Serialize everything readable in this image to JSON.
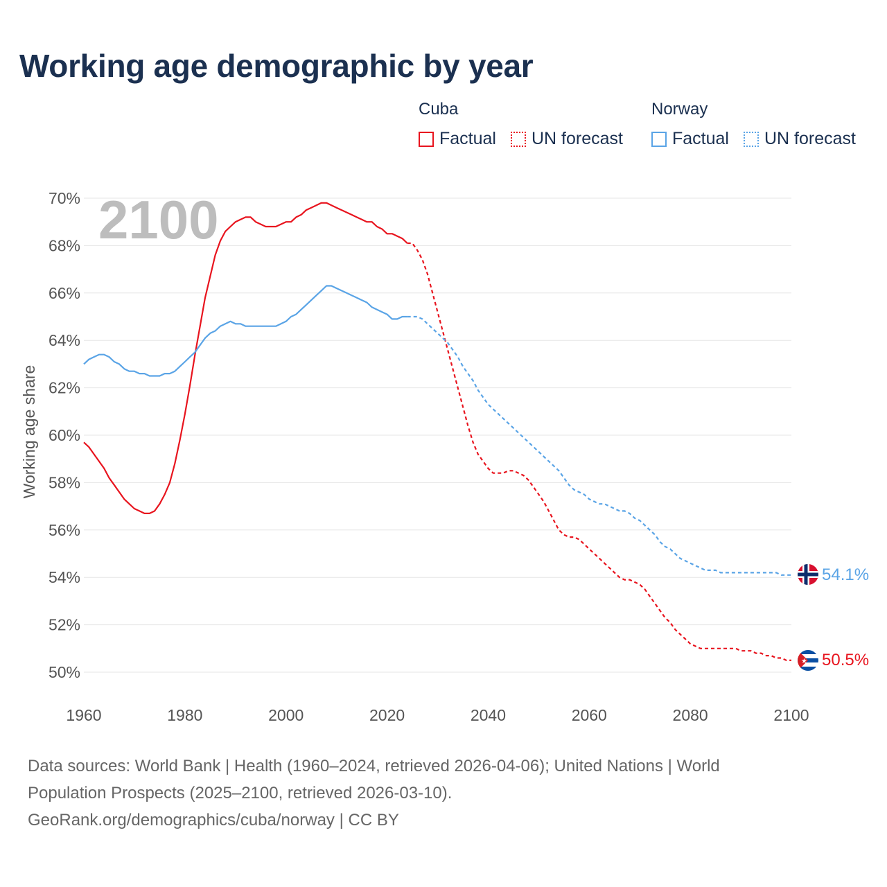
{
  "title": "Working age demographic by year",
  "legend": {
    "groups": [
      {
        "name": "Cuba",
        "color": "#e8141e",
        "factual_label": "Factual",
        "forecast_label": "UN forecast"
      },
      {
        "name": "Norway",
        "color": "#5aa4e6",
        "factual_label": "Factual",
        "forecast_label": "UN forecast"
      }
    ]
  },
  "chart_data": {
    "type": "line",
    "title": "Working age demographic by year",
    "xlabel": "",
    "ylabel": "Working age share",
    "xlim": [
      1960,
      2100
    ],
    "ylim": [
      49,
      71
    ],
    "x_ticks": [
      1960,
      1980,
      2000,
      2020,
      2040,
      2060,
      2080,
      2100
    ],
    "y_ticks": [
      50,
      52,
      54,
      56,
      58,
      60,
      62,
      64,
      66,
      68,
      70
    ],
    "y_tick_suffix": "%",
    "year_display": "2100",
    "factual_end_year": 2024,
    "series": [
      {
        "name": "Cuba",
        "color": "#e8141e",
        "end_label": "50.5%",
        "flag": "cuba-flag",
        "points": [
          [
            1960,
            59.7
          ],
          [
            1961,
            59.5
          ],
          [
            1962,
            59.2
          ],
          [
            1963,
            58.9
          ],
          [
            1964,
            58.6
          ],
          [
            1965,
            58.2
          ],
          [
            1966,
            57.9
          ],
          [
            1967,
            57.6
          ],
          [
            1968,
            57.3
          ],
          [
            1969,
            57.1
          ],
          [
            1970,
            56.9
          ],
          [
            1971,
            56.8
          ],
          [
            1972,
            56.7
          ],
          [
            1973,
            56.7
          ],
          [
            1974,
            56.8
          ],
          [
            1975,
            57.1
          ],
          [
            1976,
            57.5
          ],
          [
            1977,
            58.0
          ],
          [
            1978,
            58.8
          ],
          [
            1979,
            59.8
          ],
          [
            1980,
            60.9
          ],
          [
            1981,
            62.1
          ],
          [
            1982,
            63.4
          ],
          [
            1983,
            64.6
          ],
          [
            1984,
            65.8
          ],
          [
            1985,
            66.7
          ],
          [
            1986,
            67.6
          ],
          [
            1987,
            68.2
          ],
          [
            1988,
            68.6
          ],
          [
            1989,
            68.8
          ],
          [
            1990,
            69.0
          ],
          [
            1991,
            69.1
          ],
          [
            1992,
            69.2
          ],
          [
            1993,
            69.2
          ],
          [
            1994,
            69.0
          ],
          [
            1995,
            68.9
          ],
          [
            1996,
            68.8
          ],
          [
            1997,
            68.8
          ],
          [
            1998,
            68.8
          ],
          [
            1999,
            68.9
          ],
          [
            2000,
            69.0
          ],
          [
            2001,
            69.0
          ],
          [
            2002,
            69.2
          ],
          [
            2003,
            69.3
          ],
          [
            2004,
            69.5
          ],
          [
            2005,
            69.6
          ],
          [
            2006,
            69.7
          ],
          [
            2007,
            69.8
          ],
          [
            2008,
            69.8
          ],
          [
            2009,
            69.7
          ],
          [
            2010,
            69.6
          ],
          [
            2011,
            69.5
          ],
          [
            2012,
            69.4
          ],
          [
            2013,
            69.3
          ],
          [
            2014,
            69.2
          ],
          [
            2015,
            69.1
          ],
          [
            2016,
            69.0
          ],
          [
            2017,
            69.0
          ],
          [
            2018,
            68.8
          ],
          [
            2019,
            68.7
          ],
          [
            2020,
            68.5
          ],
          [
            2021,
            68.5
          ],
          [
            2022,
            68.4
          ],
          [
            2023,
            68.3
          ],
          [
            2024,
            68.1
          ],
          [
            2025,
            68.1
          ],
          [
            2026,
            67.8
          ],
          [
            2027,
            67.4
          ],
          [
            2028,
            66.8
          ],
          [
            2029,
            66.0
          ],
          [
            2030,
            65.2
          ],
          [
            2031,
            64.4
          ],
          [
            2032,
            63.6
          ],
          [
            2033,
            62.8
          ],
          [
            2034,
            62.0
          ],
          [
            2035,
            61.2
          ],
          [
            2036,
            60.4
          ],
          [
            2037,
            59.7
          ],
          [
            2038,
            59.2
          ],
          [
            2039,
            58.9
          ],
          [
            2040,
            58.6
          ],
          [
            2041,
            58.4
          ],
          [
            2042,
            58.4
          ],
          [
            2043,
            58.4
          ],
          [
            2044,
            58.5
          ],
          [
            2045,
            58.5
          ],
          [
            2046,
            58.4
          ],
          [
            2047,
            58.3
          ],
          [
            2048,
            58.1
          ],
          [
            2049,
            57.8
          ],
          [
            2050,
            57.5
          ],
          [
            2051,
            57.2
          ],
          [
            2052,
            56.8
          ],
          [
            2053,
            56.4
          ],
          [
            2054,
            56.0
          ],
          [
            2055,
            55.8
          ],
          [
            2056,
            55.7
          ],
          [
            2057,
            55.7
          ],
          [
            2058,
            55.6
          ],
          [
            2059,
            55.4
          ],
          [
            2060,
            55.2
          ],
          [
            2061,
            55.0
          ],
          [
            2062,
            54.8
          ],
          [
            2063,
            54.6
          ],
          [
            2064,
            54.4
          ],
          [
            2065,
            54.2
          ],
          [
            2066,
            54.0
          ],
          [
            2067,
            53.9
          ],
          [
            2068,
            53.9
          ],
          [
            2069,
            53.8
          ],
          [
            2070,
            53.7
          ],
          [
            2071,
            53.5
          ],
          [
            2072,
            53.2
          ],
          [
            2073,
            52.9
          ],
          [
            2074,
            52.6
          ],
          [
            2075,
            52.3
          ],
          [
            2076,
            52.1
          ],
          [
            2077,
            51.8
          ],
          [
            2078,
            51.6
          ],
          [
            2079,
            51.4
          ],
          [
            2080,
            51.2
          ],
          [
            2081,
            51.1
          ],
          [
            2082,
            51.0
          ],
          [
            2083,
            51.0
          ],
          [
            2084,
            51.0
          ],
          [
            2085,
            51.0
          ],
          [
            2086,
            51.0
          ],
          [
            2087,
            51.0
          ],
          [
            2088,
            51.0
          ],
          [
            2089,
            51.0
          ],
          [
            2090,
            50.9
          ],
          [
            2091,
            50.9
          ],
          [
            2092,
            50.9
          ],
          [
            2093,
            50.8
          ],
          [
            2094,
            50.8
          ],
          [
            2095,
            50.7
          ],
          [
            2096,
            50.7
          ],
          [
            2097,
            50.6
          ],
          [
            2098,
            50.6
          ],
          [
            2099,
            50.5
          ],
          [
            2100,
            50.5
          ]
        ]
      },
      {
        "name": "Norway",
        "color": "#5aa4e6",
        "end_label": "54.1%",
        "flag": "norway-flag",
        "points": [
          [
            1960,
            63.0
          ],
          [
            1961,
            63.2
          ],
          [
            1962,
            63.3
          ],
          [
            1963,
            63.4
          ],
          [
            1964,
            63.4
          ],
          [
            1965,
            63.3
          ],
          [
            1966,
            63.1
          ],
          [
            1967,
            63.0
          ],
          [
            1968,
            62.8
          ],
          [
            1969,
            62.7
          ],
          [
            1970,
            62.7
          ],
          [
            1971,
            62.6
          ],
          [
            1972,
            62.6
          ],
          [
            1973,
            62.5
          ],
          [
            1974,
            62.5
          ],
          [
            1975,
            62.5
          ],
          [
            1976,
            62.6
          ],
          [
            1977,
            62.6
          ],
          [
            1978,
            62.7
          ],
          [
            1979,
            62.9
          ],
          [
            1980,
            63.1
          ],
          [
            1981,
            63.3
          ],
          [
            1982,
            63.5
          ],
          [
            1983,
            63.8
          ],
          [
            1984,
            64.1
          ],
          [
            1985,
            64.3
          ],
          [
            1986,
            64.4
          ],
          [
            1987,
            64.6
          ],
          [
            1988,
            64.7
          ],
          [
            1989,
            64.8
          ],
          [
            1990,
            64.7
          ],
          [
            1991,
            64.7
          ],
          [
            1992,
            64.6
          ],
          [
            1993,
            64.6
          ],
          [
            1994,
            64.6
          ],
          [
            1995,
            64.6
          ],
          [
            1996,
            64.6
          ],
          [
            1997,
            64.6
          ],
          [
            1998,
            64.6
          ],
          [
            1999,
            64.7
          ],
          [
            2000,
            64.8
          ],
          [
            2001,
            65.0
          ],
          [
            2002,
            65.1
          ],
          [
            2003,
            65.3
          ],
          [
            2004,
            65.5
          ],
          [
            2005,
            65.7
          ],
          [
            2006,
            65.9
          ],
          [
            2007,
            66.1
          ],
          [
            2008,
            66.3
          ],
          [
            2009,
            66.3
          ],
          [
            2010,
            66.2
          ],
          [
            2011,
            66.1
          ],
          [
            2012,
            66.0
          ],
          [
            2013,
            65.9
          ],
          [
            2014,
            65.8
          ],
          [
            2015,
            65.7
          ],
          [
            2016,
            65.6
          ],
          [
            2017,
            65.4
          ],
          [
            2018,
            65.3
          ],
          [
            2019,
            65.2
          ],
          [
            2020,
            65.1
          ],
          [
            2021,
            64.9
          ],
          [
            2022,
            64.9
          ],
          [
            2023,
            65.0
          ],
          [
            2024,
            65.0
          ],
          [
            2025,
            65.0
          ],
          [
            2026,
            65.0
          ],
          [
            2027,
            64.9
          ],
          [
            2028,
            64.7
          ],
          [
            2029,
            64.5
          ],
          [
            2030,
            64.3
          ],
          [
            2031,
            64.1
          ],
          [
            2032,
            63.9
          ],
          [
            2033,
            63.6
          ],
          [
            2034,
            63.3
          ],
          [
            2035,
            62.9
          ],
          [
            2036,
            62.6
          ],
          [
            2037,
            62.3
          ],
          [
            2038,
            61.9
          ],
          [
            2039,
            61.6
          ],
          [
            2040,
            61.3
          ],
          [
            2041,
            61.1
          ],
          [
            2042,
            60.9
          ],
          [
            2043,
            60.7
          ],
          [
            2044,
            60.5
          ],
          [
            2045,
            60.3
          ],
          [
            2046,
            60.1
          ],
          [
            2047,
            59.9
          ],
          [
            2048,
            59.7
          ],
          [
            2049,
            59.5
          ],
          [
            2050,
            59.3
          ],
          [
            2051,
            59.1
          ],
          [
            2052,
            58.9
          ],
          [
            2053,
            58.7
          ],
          [
            2054,
            58.5
          ],
          [
            2055,
            58.2
          ],
          [
            2056,
            57.9
          ],
          [
            2057,
            57.7
          ],
          [
            2058,
            57.6
          ],
          [
            2059,
            57.5
          ],
          [
            2060,
            57.3
          ],
          [
            2061,
            57.2
          ],
          [
            2062,
            57.1
          ],
          [
            2063,
            57.1
          ],
          [
            2064,
            57.0
          ],
          [
            2065,
            56.9
          ],
          [
            2066,
            56.8
          ],
          [
            2067,
            56.8
          ],
          [
            2068,
            56.7
          ],
          [
            2069,
            56.5
          ],
          [
            2070,
            56.4
          ],
          [
            2071,
            56.2
          ],
          [
            2072,
            56.0
          ],
          [
            2073,
            55.8
          ],
          [
            2074,
            55.5
          ],
          [
            2075,
            55.3
          ],
          [
            2076,
            55.2
          ],
          [
            2077,
            55.0
          ],
          [
            2078,
            54.8
          ],
          [
            2079,
            54.7
          ],
          [
            2080,
            54.6
          ],
          [
            2081,
            54.5
          ],
          [
            2082,
            54.4
          ],
          [
            2083,
            54.3
          ],
          [
            2084,
            54.3
          ],
          [
            2085,
            54.3
          ],
          [
            2086,
            54.2
          ],
          [
            2087,
            54.2
          ],
          [
            2088,
            54.2
          ],
          [
            2089,
            54.2
          ],
          [
            2090,
            54.2
          ],
          [
            2091,
            54.2
          ],
          [
            2092,
            54.2
          ],
          [
            2093,
            54.2
          ],
          [
            2094,
            54.2
          ],
          [
            2095,
            54.2
          ],
          [
            2096,
            54.2
          ],
          [
            2097,
            54.2
          ],
          [
            2098,
            54.1
          ],
          [
            2099,
            54.1
          ],
          [
            2100,
            54.1
          ]
        ]
      }
    ]
  },
  "footer": {
    "line1": "Data sources: World Bank | Health (1960–2024, retrieved 2026-04-06); United Nations | World",
    "line2": "Population Prospects (2025–2100, retrieved 2026-03-10).",
    "line3": "GeoRank.org/demographics/cuba/norway | CC BY"
  }
}
